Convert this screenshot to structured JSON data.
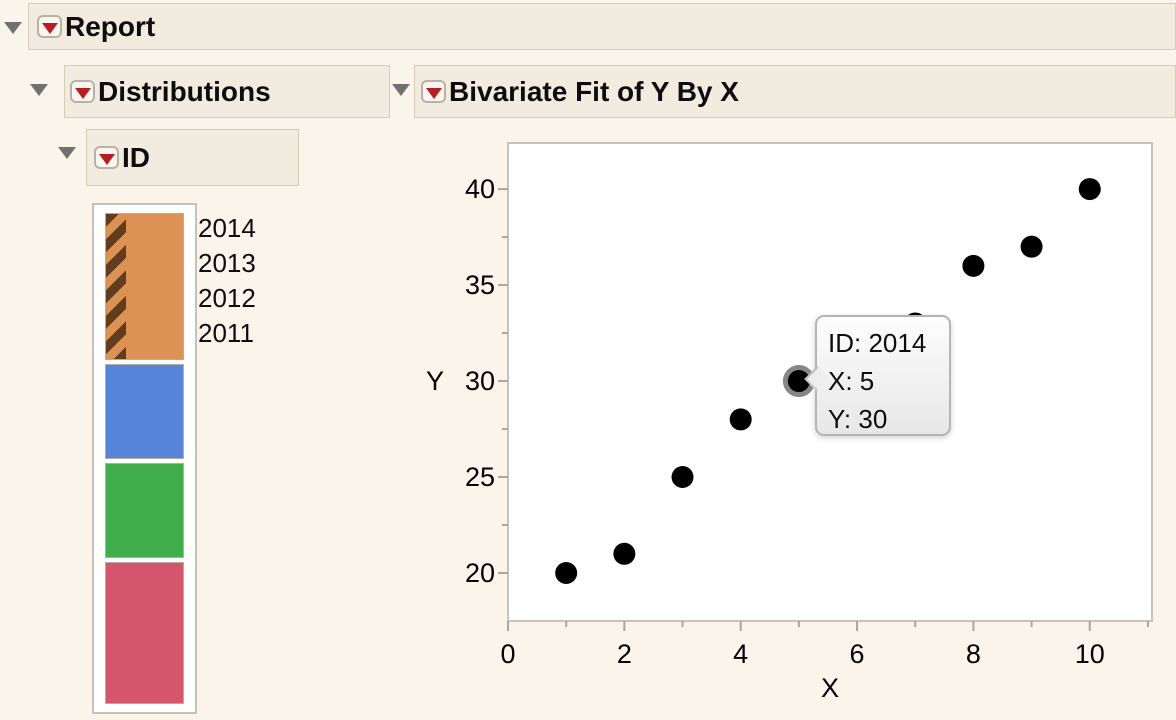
{
  "window": {
    "title": "Report"
  },
  "theme": {
    "page_bg": "#fbf4eb",
    "header_bg": "#f2ebdf",
    "header_border": "#d8cbb6",
    "red_triangle": "#b51f24",
    "disclosure_gray": "#707070",
    "frame_border": "#c6c2bb",
    "tick_color": "#aaa69f"
  },
  "outline": {
    "report": {
      "title": "Report"
    },
    "distributions": {
      "title": "Distributions"
    },
    "bivariate": {
      "title": "Bivariate Fit of Y By X"
    },
    "id": {
      "title": "ID"
    }
  },
  "mosaic": {
    "variable": "ID",
    "segments": [
      {
        "label": "2014",
        "color": "#dc9254",
        "fraction": 0.3075,
        "selected": true
      },
      {
        "label": "2013",
        "color": "#5584d8",
        "fraction": 0.1987,
        "selected": false
      },
      {
        "label": "2012",
        "color": "#3ead4a",
        "fraction": 0.1967,
        "selected": false
      },
      {
        "label": "2011",
        "color": "#d4566c",
        "fraction": 0.2971,
        "selected": false
      }
    ]
  },
  "chart_data": {
    "type": "scatter",
    "title": "Bivariate Fit of Y By X",
    "xlabel": "X",
    "ylabel": "Y",
    "xlim": [
      0,
      11.07
    ],
    "ylim": [
      17.5,
      42.4
    ],
    "x_major_ticks": [
      0,
      2,
      4,
      6,
      8,
      10
    ],
    "x_minor_ticks": [
      1,
      3,
      5,
      7,
      9,
      11
    ],
    "y_major_ticks": [
      20,
      25,
      30,
      35,
      40
    ],
    "y_minor_ticks": [
      22.5,
      27.5,
      32.5,
      37.5
    ],
    "grid": false,
    "marker_color": "#000000",
    "points": [
      {
        "x": 1,
        "y": 20
      },
      {
        "x": 2,
        "y": 21
      },
      {
        "x": 3,
        "y": 25
      },
      {
        "x": 4,
        "y": 28
      },
      {
        "x": 5,
        "y": 30,
        "id": "2014",
        "highlighted": true
      },
      {
        "x": 7,
        "y": 33
      },
      {
        "x": 8,
        "y": 36
      },
      {
        "x": 9,
        "y": 37
      },
      {
        "x": 10,
        "y": 40
      }
    ]
  },
  "tooltip": {
    "lines": [
      "ID: 2014",
      "X: 5",
      "Y: 30"
    ]
  }
}
